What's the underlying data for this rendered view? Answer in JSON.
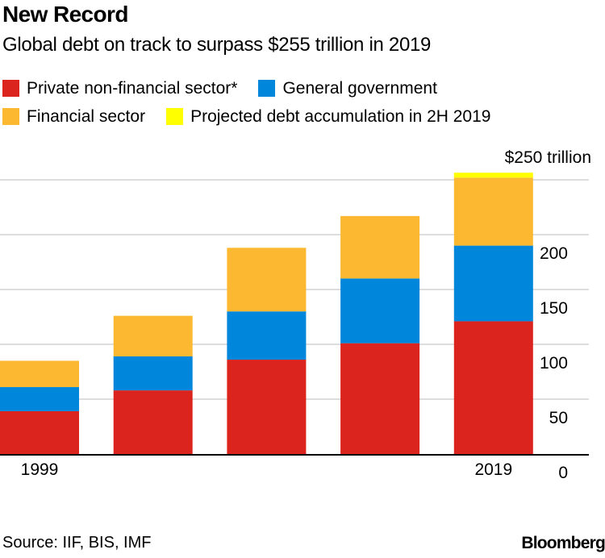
{
  "header": {
    "title": "New Record",
    "subtitle": "Global debt on track to surpass $255 trillion in 2019"
  },
  "footer": {
    "source": "Source: IIF, BIS, IMF",
    "brand": "Bloomberg"
  },
  "chart_data": {
    "type": "bar",
    "stacked": true,
    "title": "New Record",
    "subtitle": "Global debt on track to surpass $255 trillion in 2019",
    "xlabel": "",
    "ylabel": "",
    "unit": "$ trillion",
    "categories": [
      "1999",
      "",
      "",
      "",
      "2019"
    ],
    "x_tick_labels": [
      {
        "index": 0,
        "label": "1999"
      },
      {
        "index": 4,
        "label": "2019"
      }
    ],
    "series": [
      {
        "name": "Private non-financial sector*",
        "color": "#dc241f",
        "values": [
          39,
          58,
          86,
          101,
          121
        ]
      },
      {
        "name": "General government",
        "color": "#0086db",
        "values": [
          22,
          31,
          44,
          59,
          69
        ]
      },
      {
        "name": "Financial sector",
        "color": "#fcb830",
        "values": [
          24,
          37,
          58,
          57,
          62
        ]
      },
      {
        "name": "Projected debt accumulation in 2H 2019",
        "color": "#ffff00",
        "values": [
          0,
          0,
          0,
          0,
          4.5
        ]
      }
    ],
    "ylim": [
      0,
      250
    ],
    "y_ticks": [
      {
        "value": 0,
        "label": "0"
      },
      {
        "value": 50,
        "label": "50"
      },
      {
        "value": 100,
        "label": "100"
      },
      {
        "value": 150,
        "label": "150"
      },
      {
        "value": 200,
        "label": "200"
      },
      {
        "value": 250,
        "label": "$250 trillion"
      }
    ],
    "grid": true,
    "y_axis_side": "right",
    "legend_position": "top-left",
    "gridline_color": "#dddddd",
    "axis_color": "#000000"
  }
}
